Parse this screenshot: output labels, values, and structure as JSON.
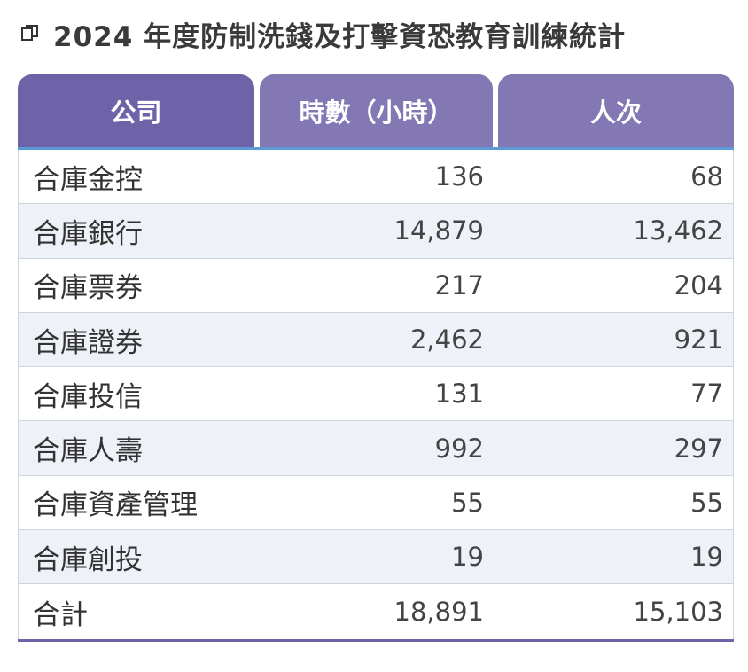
{
  "title": {
    "icon": "copy-icon",
    "text": "2024 年度防制洗錢及打擊資恐教育訓練統計"
  },
  "table": {
    "headers": {
      "company": "公司",
      "hours": "時數（小時）",
      "people": "人次"
    },
    "rows": [
      {
        "company": "合庫金控",
        "hours": "136",
        "people": "68"
      },
      {
        "company": "合庫銀行",
        "hours": "14,879",
        "people": "13,462"
      },
      {
        "company": "合庫票券",
        "hours": "217",
        "people": "204"
      },
      {
        "company": "合庫證券",
        "hours": "2,462",
        "people": "921"
      },
      {
        "company": "合庫投信",
        "hours": "131",
        "people": "77"
      },
      {
        "company": "合庫人壽",
        "hours": "992",
        "people": "297"
      },
      {
        "company": "合庫資產管理",
        "hours": "55",
        "people": "55"
      },
      {
        "company": "合庫創投",
        "hours": "19",
        "people": "19"
      },
      {
        "company": "合計",
        "hours": "18,891",
        "people": "15,103"
      }
    ]
  },
  "colors": {
    "header_primary": "#6e63a8",
    "header_secondary": "#8478b4",
    "row_alt": "#eef2f8",
    "header_line": "#5b9bd5"
  }
}
